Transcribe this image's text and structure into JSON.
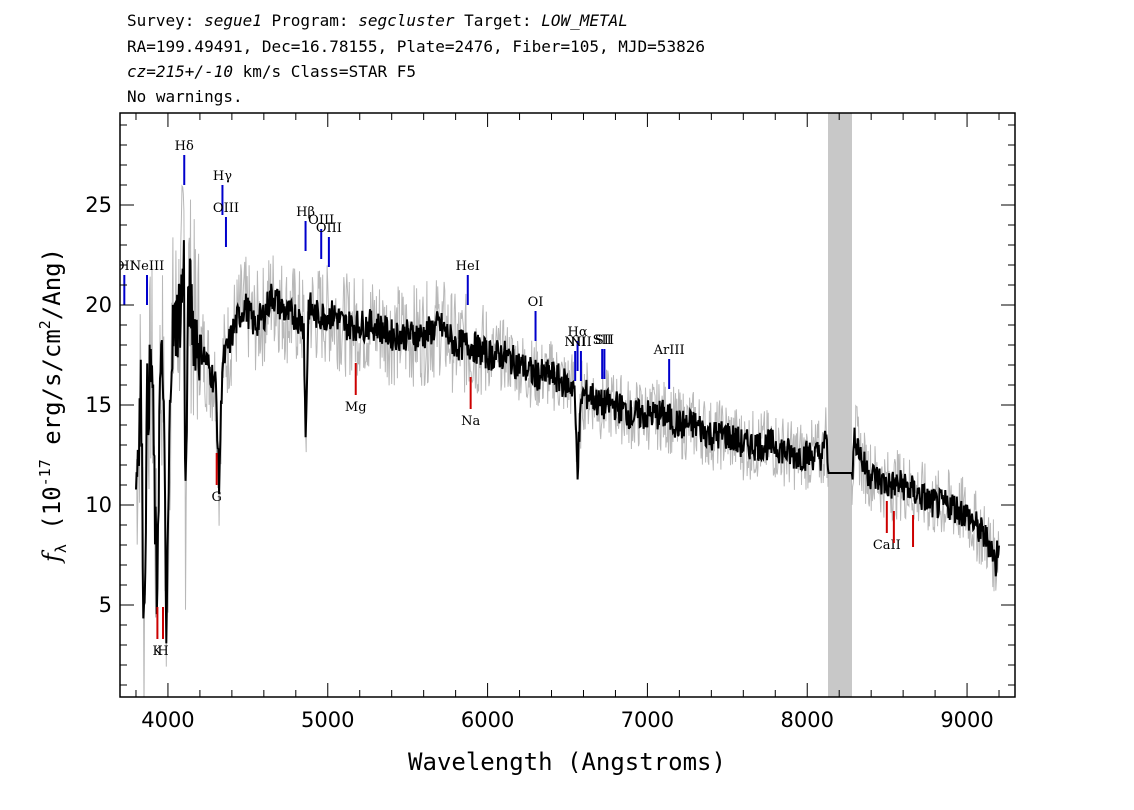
{
  "header": {
    "survey_label": "Survey: ",
    "survey": "segue1",
    "program_label": " Program: ",
    "program": "segcluster",
    "target_label": " Target: ",
    "target": "LOW_METAL",
    "line2": "RA=199.49491, Dec=16.78155, Plate=2476, Fiber=105, MJD=53826",
    "cz": "cz=215+/-10",
    "cz_rest": " km/s Class=STAR F5",
    "line4": "No warnings."
  },
  "chart_data": {
    "type": "line",
    "xlabel": "Wavelength (Angstroms)",
    "ylabel": "f_λ (10^-17 erg/s/cm^2/Ang)",
    "xlim": [
      3700,
      9300
    ],
    "ylim": [
      0.4,
      29.6
    ],
    "x_ticks": [
      4000,
      5000,
      6000,
      7000,
      8000,
      9000
    ],
    "y_ticks": [
      5,
      10,
      15,
      20,
      25
    ],
    "masked_region": [
      8130,
      8280
    ],
    "series": [
      {
        "color": "#000000",
        "x": [
          3800,
          3830,
          3850,
          3870,
          3900,
          3930,
          3950,
          3970,
          3990,
          4020,
          4050,
          4080,
          4100,
          4110,
          4130,
          4160,
          4200,
          4250,
          4300,
          4320,
          4340,
          4380,
          4420,
          4480,
          4540,
          4600,
          4650,
          4700,
          4750,
          4800,
          4850,
          4861,
          4880,
          4920,
          4980,
          5050,
          5100,
          5150,
          5200,
          5300,
          5400,
          5500,
          5600,
          5700,
          5800,
          5900,
          6000,
          6100,
          6200,
          6300,
          6400,
          6500,
          6540,
          6563,
          6590,
          6650,
          6700,
          6800,
          6900,
          7000,
          7100,
          7200,
          7300,
          7400,
          7500,
          7600,
          7700,
          7800,
          7900,
          8000,
          8100,
          8120,
          8130,
          8280,
          8300,
          8350,
          8400,
          8500,
          8600,
          8700,
          8800,
          8900,
          9000,
          9050,
          9100,
          9150,
          9180,
          9200
        ],
        "y": [
          11,
          16,
          4,
          15,
          17,
          5,
          16,
          17,
          3,
          18,
          19,
          20,
          22,
          10,
          21,
          19,
          18,
          17,
          16,
          11,
          17,
          18,
          19,
          20,
          19,
          19.5,
          20.5,
          20,
          19.5,
          19.5,
          19,
          13.2,
          20,
          19.5,
          19.5,
          19.5,
          19,
          19,
          19,
          19,
          18.5,
          18.5,
          18.5,
          19,
          18,
          18,
          17.5,
          17.5,
          17,
          16.5,
          16.5,
          16,
          16,
          12,
          15.5,
          15.5,
          15,
          15,
          14.5,
          14.5,
          14.5,
          14,
          14,
          13.5,
          13.5,
          13,
          13,
          13,
          12.5,
          12.5,
          12.5,
          13.8,
          11.6,
          11.6,
          13.5,
          12,
          11.5,
          11,
          11,
          10.5,
          10,
          10,
          9.5,
          9,
          8.5,
          8,
          7,
          8.5
        ]
      }
    ],
    "lines": {
      "emission": [
        {
          "label": "OII",
          "x": 3727,
          "y": 21.5
        },
        {
          "label": "NeIII",
          "x": 3869,
          "y": 21.5
        },
        {
          "label": "Hδ",
          "x": 4102,
          "y": 27.5
        },
        {
          "label": "Hγ",
          "x": 4341,
          "y": 26
        },
        {
          "label": "OIII",
          "x": 4363,
          "y": 24.4
        },
        {
          "label": "Hβ",
          "x": 4861,
          "y": 24.2
        },
        {
          "label": "OIII",
          "x": 4959,
          "y": 23.8
        },
        {
          "label": "OIII",
          "x": 5007,
          "y": 23.4
        },
        {
          "label": "HeI",
          "x": 5876,
          "y": 21.5
        },
        {
          "label": "OI",
          "x": 6300,
          "y": 19.7
        },
        {
          "label": "NII",
          "x": 6548,
          "y": 17.7
        },
        {
          "label": "Hα",
          "x": 6563,
          "y": 18.2
        },
        {
          "label": "NII",
          "x": 6584,
          "y": 17.7
        },
        {
          "label": "SII",
          "x": 6717,
          "y": 17.8
        },
        {
          "label": "SII",
          "x": 6731,
          "y": 17.8
        },
        {
          "label": "ArIII",
          "x": 7136,
          "y": 17.3
        }
      ],
      "absorption": [
        {
          "label": "K",
          "x": 3934,
          "y": 3.3
        },
        {
          "label": "H",
          "x": 3969,
          "y": 3.3
        },
        {
          "label": "G",
          "x": 4305,
          "y": 11
        },
        {
          "label": "Mg",
          "x": 5175,
          "y": 15.5
        },
        {
          "label": "Na",
          "x": 5894,
          "y": 14.8
        },
        {
          "label": "CaII",
          "x": 8498,
          "y": 8.6
        },
        {
          "label": "CaII",
          "x": 8542,
          "y": 8.1
        },
        {
          "label": "CaII",
          "x": 8662,
          "y": 7.9
        }
      ],
      "emission_color": "#0000cc",
      "absorption_color": "#cc0000"
    }
  }
}
